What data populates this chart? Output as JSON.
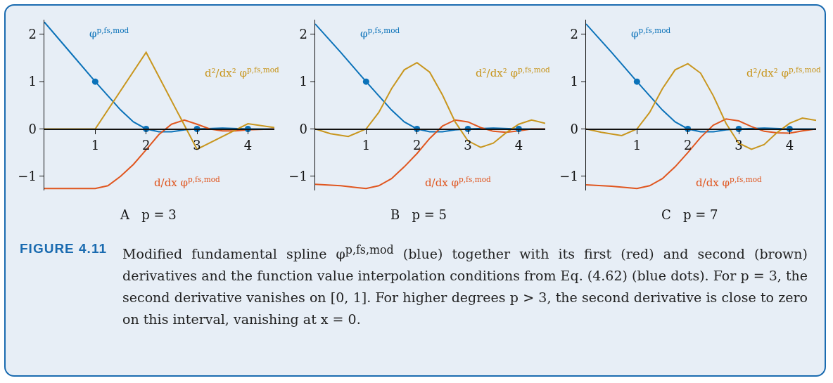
{
  "chart_data": [
    {
      "type": "line",
      "xlabel": "A   p = 3",
      "xlim": [
        0,
        4.52
      ],
      "ylim": [
        -1.3,
        2.31
      ],
      "xticks": [
        1,
        2,
        3,
        4
      ],
      "yticks": [
        -1,
        0,
        1,
        2
      ],
      "marker": "none",
      "series": [
        {
          "name": "φ$^{p,fs,mod}$",
          "color": "#0b72b9",
          "x": [
            0,
            0.5,
            1,
            1.25,
            1.5,
            1.75,
            2,
            2.25,
            2.5,
            2.75,
            3,
            3.5,
            4,
            4.52
          ],
          "values": [
            2.26,
            1.63,
            1,
            0.7,
            0.4,
            0.15,
            0,
            -0.06,
            -0.06,
            -0.02,
            0,
            0.02,
            0,
            0
          ]
        },
        {
          "name": "d/dx φ$^{p,fs,mod}$",
          "color": "#e0561f",
          "x": [
            0,
            1,
            1.25,
            1.5,
            1.75,
            2,
            2.25,
            2.5,
            2.75,
            3,
            3.25,
            3.5,
            3.75,
            4,
            4.52
          ],
          "values": [
            -1.26,
            -1.26,
            -1.2,
            -1.0,
            -0.75,
            -0.44,
            -0.12,
            0.1,
            0.19,
            0.1,
            0,
            -0.04,
            -0.04,
            -0.02,
            0
          ]
        },
        {
          "name": "d²/dx² φ$^{p,fs,mod}$",
          "color": "#c8961e",
          "x": [
            0,
            1,
            2,
            3,
            4,
            4.52
          ],
          "values": [
            0,
            0,
            1.62,
            -0.43,
            0.11,
            0.03
          ]
        },
        {
          "type": "scatter",
          "marker": "circle",
          "color": "#0b72b9",
          "x": [
            1,
            2,
            3,
            4
          ],
          "values": [
            1,
            0,
            0,
            0
          ]
        }
      ]
    },
    {
      "type": "line",
      "xlabel": "B   p = 5",
      "xlim": [
        0,
        4.52
      ],
      "ylim": [
        -1.3,
        2.31
      ],
      "xticks": [
        1,
        2,
        3,
        4
      ],
      "yticks": [
        -1,
        0,
        1,
        2
      ],
      "marker": "none",
      "series": [
        {
          "name": "φ$^{p,fs,mod}$",
          "color": "#0b72b9",
          "x": [
            0,
            0.5,
            1,
            1.25,
            1.5,
            1.75,
            2,
            2.25,
            2.5,
            2.75,
            3,
            3.5,
            4,
            4.52
          ],
          "values": [
            2.22,
            1.62,
            1,
            0.7,
            0.4,
            0.15,
            0,
            -0.06,
            -0.06,
            -0.02,
            0,
            0.02,
            0,
            0
          ]
        },
        {
          "name": "d/dx φ$^{p,fs,mod}$",
          "color": "#e0561f",
          "x": [
            0,
            0.5,
            1,
            1.25,
            1.5,
            1.75,
            2,
            2.25,
            2.5,
            2.75,
            3,
            3.25,
            3.5,
            3.75,
            4,
            4.25,
            4.52
          ],
          "values": [
            -1.17,
            -1.2,
            -1.26,
            -1.2,
            -1.05,
            -0.8,
            -0.52,
            -0.2,
            0.06,
            0.19,
            0.15,
            0.03,
            -0.05,
            -0.07,
            -0.04,
            0,
            0
          ]
        },
        {
          "name": "d²/dx² φ$^{p,fs,mod}$",
          "color": "#c8961e",
          "x": [
            0,
            0.3,
            0.65,
            1,
            1.25,
            1.5,
            1.75,
            2,
            2.25,
            2.5,
            2.75,
            3,
            3.25,
            3.5,
            3.75,
            4,
            4.25,
            4.52
          ],
          "values": [
            0,
            -0.1,
            -0.16,
            0,
            0.35,
            0.85,
            1.25,
            1.4,
            1.2,
            0.72,
            0.15,
            -0.25,
            -0.39,
            -0.3,
            -0.08,
            0.1,
            0.19,
            0.12
          ]
        },
        {
          "type": "scatter",
          "marker": "circle",
          "color": "#0b72b9",
          "x": [
            1,
            2,
            3,
            4
          ],
          "values": [
            1,
            0,
            0,
            0
          ]
        }
      ]
    },
    {
      "type": "line",
      "xlabel": "C   p = 7",
      "xlim": [
        0,
        4.52
      ],
      "ylim": [
        -1.3,
        2.31
      ],
      "xticks": [
        1,
        2,
        3,
        4
      ],
      "yticks": [
        -1,
        0,
        1,
        2
      ],
      "marker": "none",
      "series": [
        {
          "name": "φ$^{p,fs,mod}$",
          "color": "#0b72b9",
          "x": [
            0,
            0.5,
            1,
            1.25,
            1.5,
            1.75,
            2,
            2.25,
            2.5,
            2.75,
            3,
            3.5,
            4,
            4.52
          ],
          "values": [
            2.22,
            1.62,
            1,
            0.7,
            0.4,
            0.15,
            0,
            -0.06,
            -0.06,
            -0.02,
            0,
            0.02,
            0,
            0
          ]
        },
        {
          "name": "d/dx φ$^{p,fs,mod}$",
          "color": "#e0561f",
          "x": [
            0,
            0.5,
            1,
            1.25,
            1.5,
            1.75,
            2,
            2.25,
            2.5,
            2.75,
            3,
            3.25,
            3.5,
            3.75,
            4,
            4.25,
            4.52
          ],
          "values": [
            -1.18,
            -1.21,
            -1.26,
            -1.2,
            -1.05,
            -0.8,
            -0.5,
            -0.18,
            0.08,
            0.21,
            0.17,
            0.05,
            -0.05,
            -0.08,
            -0.09,
            -0.04,
            0
          ]
        },
        {
          "name": "d²/dx² φ$^{p,fs,mod}$",
          "color": "#c8961e",
          "x": [
            0,
            0.3,
            0.7,
            1,
            1.25,
            1.5,
            1.75,
            2,
            2.25,
            2.5,
            2.75,
            3,
            3.25,
            3.5,
            3.75,
            4,
            4.25,
            4.52
          ],
          "values": [
            0,
            -0.07,
            -0.14,
            0,
            0.35,
            0.85,
            1.25,
            1.38,
            1.18,
            0.7,
            0.12,
            -0.3,
            -0.43,
            -0.33,
            -0.08,
            0.12,
            0.23,
            0.18
          ]
        },
        {
          "type": "scatter",
          "marker": "circle",
          "color": "#0b72b9",
          "x": [
            1,
            2,
            3,
            4
          ],
          "values": [
            1,
            0,
            0,
            0
          ]
        }
      ]
    },
    {
      "type": "other",
      "title": "FIGURE 4.11",
      "annotations": [
        "Modified fundamental spline φ$^{p,fs,mod}$ (blue) together with its first (red) and second (brown) derivatives and the function value interpolation conditions from Eq. (4.62) (blue dots). For p = 3, the second derivative vanishes on [0, 1]. For higher degrees p > 3, the second derivative is close to zero on this interval, vanishing at x = 0."
      ]
    }
  ]
}
